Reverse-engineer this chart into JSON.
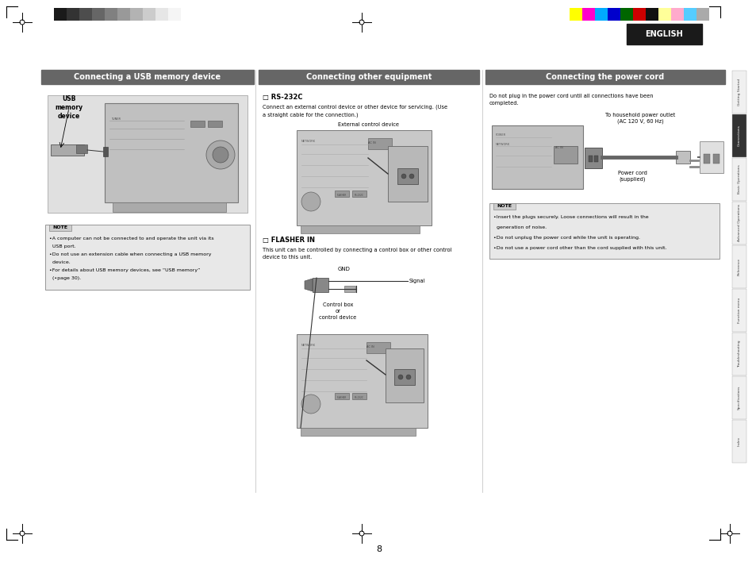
{
  "page_bg": "#ffffff",
  "page_width": 9.54,
  "page_height": 7.08,
  "dpi": 100,
  "grayscale_colors": [
    "#1a1a1a",
    "#333333",
    "#4d4d4d",
    "#666666",
    "#808080",
    "#999999",
    "#b3b3b3",
    "#cccccc",
    "#e6e6e6",
    "#f5f5f5"
  ],
  "color_swatches": [
    "#ffff00",
    "#ff00cc",
    "#00aaff",
    "#0000cc",
    "#006600",
    "#cc0000",
    "#111111",
    "#ffff99",
    "#ffaacc",
    "#55ccff",
    "#aaaaaa"
  ],
  "english_bg": "#1a1a1a",
  "english_text": "ENGLISH",
  "english_text_color": "#ffffff",
  "section1_title": "Connecting a USB memory device",
  "section2_title": "Connecting other equipment",
  "section3_title": "Connecting the power cord",
  "section_title_bg": "#666666",
  "section_title_text_color": "#ffffff",
  "tab_labels": [
    "Getting Started",
    "Connections",
    "Basic Operations",
    "Advanced Operations",
    "Reference",
    "Function menu",
    "Troubleshooting",
    "Specifications",
    "Index"
  ],
  "tab_active": 1,
  "tab_active_color": "#333333",
  "tab_inactive_color": "#dddddd",
  "tab_border_color": "#aaaaaa",
  "note_bg": "#e8e8e8",
  "note_border": "#888888",
  "note_label_bg": "#cccccc",
  "section1_note_lines": [
    "•A computer can not be connected to and operate the unit via its",
    "  USB port.",
    "•Do not use an extension cable when connecting a USB memory",
    "  device.",
    "•For details about USB memory devices, see “USB memory”",
    "  (•page 30)."
  ],
  "section2_rs232c_title": "□ RS-232C",
  "section2_rs232c_text1": "Connect an external control device or other device for servicing. (Use",
  "section2_rs232c_text2": "a straight cable for the connection.)",
  "section2_flasher_title": "□ FLASHER IN",
  "section2_flasher_text1": "This unit can be controlled by connecting a control box or other control",
  "section2_flasher_text2": "device to this unit.",
  "section3_text1": "Do not plug in the power cord until all connections have been",
  "section3_text2": "completed.",
  "section3_outlet_label": "To household power outlet\n(AC 120 V, 60 Hz)",
  "section3_cord_label": "Power cord\n(supplied)",
  "section3_note_lines": [
    "•Insert the plugs securely. Loose connections will result in the",
    "  generation of noise.",
    "•Do not unplug the power cord while the unit is operating.",
    "•Do not use a power cord other than the cord supplied with this unit."
  ],
  "usb_label": "USB\nmemory\ndevice",
  "external_device_label": "External control device",
  "gnd_label": "GND",
  "signal_label": "Signal",
  "control_box_label": "Control box\nor\ncontrol device",
  "page_number": "8"
}
